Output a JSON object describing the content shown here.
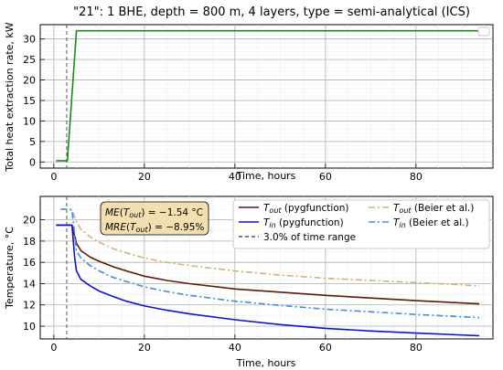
{
  "figure": {
    "title": "\"21\": 1 BHE, depth = 800 m, 4 layers, type = semi-analytical (ICS)"
  },
  "chart_data": [
    {
      "type": "line",
      "xlabel": "Time, hours",
      "ylabel": "Total heat extraction rate, kW",
      "xlim": [
        -3,
        97
      ],
      "ylim": [
        -1.5,
        33.5
      ],
      "xticks": [
        0,
        20,
        40,
        60,
        80
      ],
      "yticks": [
        0,
        5,
        10,
        15,
        20,
        25,
        30
      ],
      "grid": true,
      "vline_x": 2.85,
      "series": [
        {
          "color": "#1a8a1a",
          "dash": "",
          "x": [
            0.5,
            3.0,
            5.0,
            94.0
          ],
          "y": [
            0.3,
            0.3,
            32.0,
            32.0
          ]
        }
      ]
    },
    {
      "type": "line",
      "xlabel": "Time, hours",
      "ylabel": "Temperature, °C",
      "xlim": [
        -3,
        97
      ],
      "ylim": [
        8.8,
        22.2
      ],
      "xticks": [
        0,
        20,
        40,
        60,
        80
      ],
      "yticks": [
        10,
        12,
        14,
        16,
        18,
        20
      ],
      "grid": true,
      "vline_x": 2.85,
      "annotation": {
        "line1": "ME(T_out) = −1.54 °C",
        "line2": "MRE(T_out) = −8.95%"
      },
      "legend": {
        "placement": "top-right",
        "entries": [
          {
            "label_main": "T",
            "label_sub": "out",
            "label_rest": " (pygfunction)",
            "color": "#5a1a0a",
            "dash": ""
          },
          {
            "label_main": "T",
            "label_sub": "in",
            "label_rest": " (pygfunction)",
            "color": "#1010d0",
            "dash": ""
          },
          {
            "label_main": "",
            "label_sub": "",
            "label_rest": "3.0% of time range",
            "color": "#555555",
            "dash": "4,3"
          },
          {
            "label_main": "T",
            "label_sub": "out",
            "label_rest": " (Beier et al.)",
            "color": "#d2b07a",
            "dash": "7,3,2,3"
          },
          {
            "label_main": "T",
            "label_sub": "in",
            "label_rest": " (Beier et al.)",
            "color": "#3a8ee8",
            "dash": "7,3,2,3"
          }
        ]
      },
      "series": [
        {
          "name": "T_out (pygfunction)",
          "color": "#5a1a0a",
          "dash": "",
          "x": [
            0.5,
            3.5,
            4.0,
            5.0,
            6.0,
            8.0,
            10.0,
            13.0,
            16.0,
            20.0,
            25.0,
            30.0,
            40.0,
            50.0,
            60.0,
            70.0,
            80.0,
            94.0
          ],
          "y": [
            19.5,
            19.5,
            19.5,
            17.8,
            17.1,
            16.5,
            16.1,
            15.6,
            15.2,
            14.7,
            14.3,
            14.0,
            13.5,
            13.2,
            12.9,
            12.65,
            12.4,
            12.1
          ]
        },
        {
          "name": "T_in (pygfunction)",
          "color": "#1010d0",
          "dash": "",
          "x": [
            0.5,
            3.5,
            4.0,
            4.6,
            5.0,
            6.0,
            8.0,
            10.0,
            13.0,
            16.0,
            20.0,
            25.0,
            30.0,
            40.0,
            50.0,
            60.0,
            70.0,
            80.0,
            94.0
          ],
          "y": [
            19.5,
            19.5,
            19.5,
            16.5,
            15.2,
            14.4,
            13.8,
            13.3,
            12.8,
            12.35,
            11.9,
            11.5,
            11.15,
            10.6,
            10.15,
            9.8,
            9.55,
            9.35,
            9.1
          ]
        },
        {
          "name": "T_out (Beier et al.)",
          "color": "#d2b07a",
          "dash": "7,3,2,3",
          "x": [
            1.5,
            3.5,
            4.0,
            5.0,
            6.0,
            8.0,
            10.0,
            13.0,
            16.0,
            20.0,
            25.0,
            30.0,
            40.0,
            50.0,
            60.0,
            70.0,
            80.0,
            94.0
          ],
          "y": [
            21.0,
            21.0,
            20.9,
            19.8,
            19.1,
            18.4,
            17.9,
            17.3,
            16.9,
            16.4,
            16.0,
            15.7,
            15.2,
            14.8,
            14.5,
            14.3,
            14.1,
            13.8
          ]
        },
        {
          "name": "T_in (Beier et al.)",
          "color": "#3a8ee8",
          "dash": "7,3,2,3",
          "x": [
            1.5,
            3.5,
            4.0,
            5.0,
            6.0,
            8.0,
            10.0,
            13.0,
            16.0,
            20.0,
            25.0,
            30.0,
            40.0,
            50.0,
            60.0,
            70.0,
            80.0,
            94.0
          ],
          "y": [
            21.0,
            21.0,
            20.9,
            17.1,
            16.4,
            15.7,
            15.2,
            14.6,
            14.2,
            13.7,
            13.25,
            12.9,
            12.35,
            11.95,
            11.6,
            11.35,
            11.1,
            10.8
          ]
        }
      ]
    }
  ]
}
